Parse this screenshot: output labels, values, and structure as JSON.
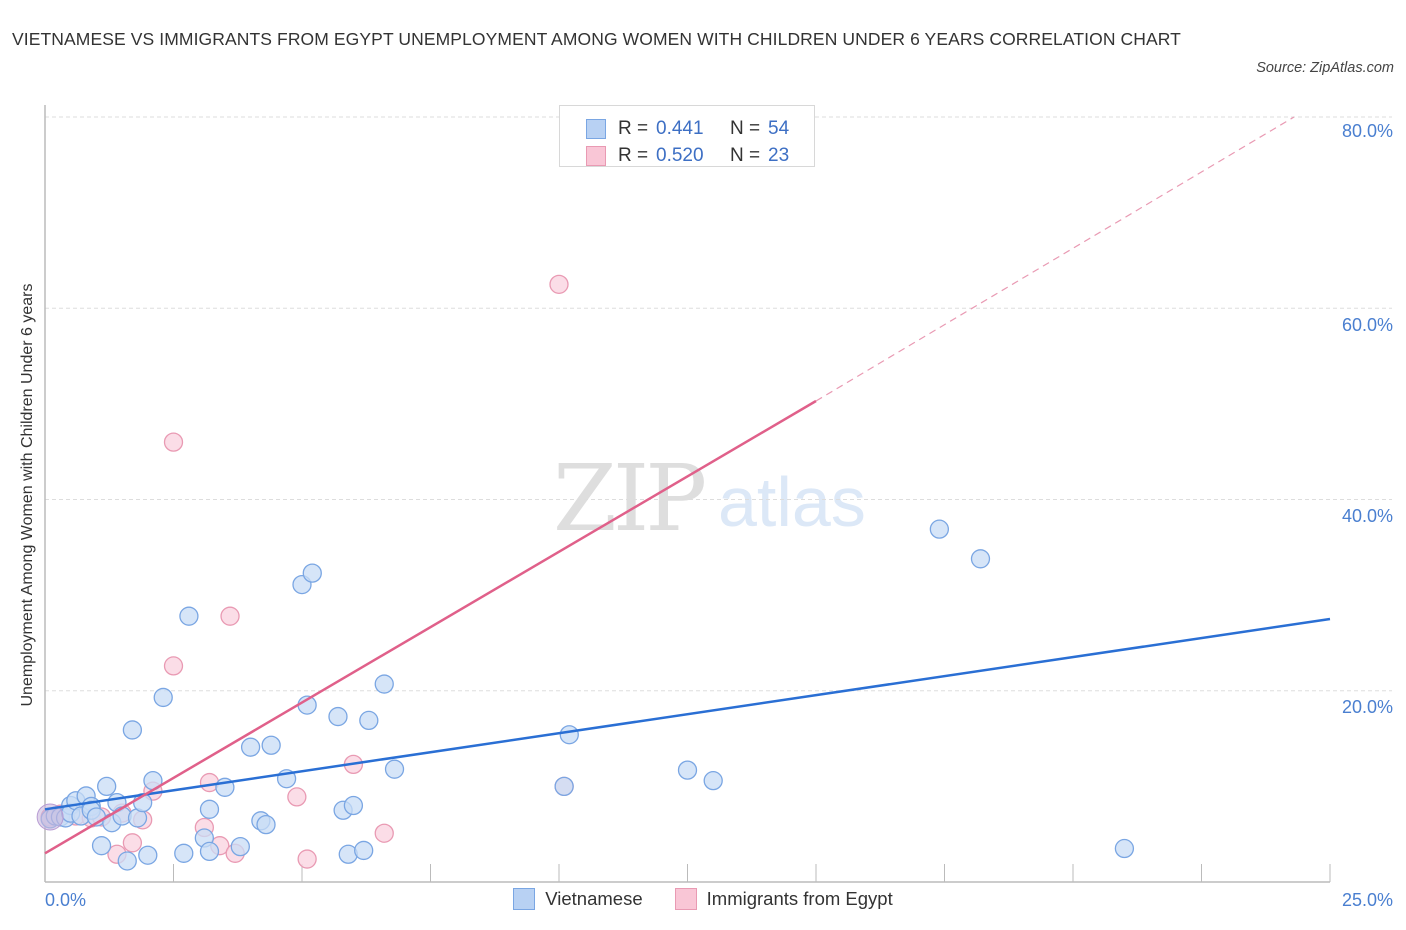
{
  "header": {
    "title": "VIETNAMESE VS IMMIGRANTS FROM EGYPT UNEMPLOYMENT AMONG WOMEN WITH CHILDREN UNDER 6 YEARS CORRELATION CHART",
    "source": "Source: ZipAtlas.com"
  },
  "watermark": {
    "part1": "ZIP",
    "part2": "atlas"
  },
  "stats_box": {
    "rows": [
      {
        "r_label": "R =",
        "r_value": "0.441",
        "n_label": "N =",
        "n_value": "54",
        "color": "#b8d1f3",
        "border": "#7aa6e3"
      },
      {
        "r_label": "R =",
        "r_value": "0.520",
        "n_label": "N =",
        "n_value": "23",
        "color": "#f9c6d6",
        "border": "#e99ab3"
      }
    ]
  },
  "axes": {
    "y_label": "Unemployment Among Women with Children Under 6 years",
    "y_ticks": [
      "80.0%",
      "60.0%",
      "40.0%",
      "20.0%"
    ],
    "x_ticks": [
      "0.0%",
      "25.0%"
    ]
  },
  "legend": {
    "items": [
      {
        "label": "Vietnamese",
        "color": "#b8d1f3",
        "border": "#7aa6e3"
      },
      {
        "label": "Immigrants from Egypt",
        "color": "#f9c6d6",
        "border": "#e99ab3"
      }
    ]
  },
  "chart_data": {
    "type": "scatter",
    "title": "Vietnamese vs Immigrants from Egypt Unemployment Among Women with Children Under 6 Years Correlation Chart",
    "xlabel": "",
    "ylabel": "Unemployment Among Women with Children Under 6 years",
    "xlim": [
      0,
      25
    ],
    "ylim": [
      0,
      80
    ],
    "x_tick_labels": [
      "0.0%",
      "25.0%"
    ],
    "y_tick_labels": [
      "20.0%",
      "40.0%",
      "60.0%",
      "80.0%"
    ],
    "grid": true,
    "legend_position": "bottom",
    "series": [
      {
        "name": "Vietnamese",
        "color": "#7aa6e3",
        "fill": "#c8dcf6",
        "R": 0.441,
        "N": 54,
        "trend": {
          "x": [
            0,
            25
          ],
          "y": [
            7.6,
            27.5
          ]
        },
        "points": [
          [
            0.1,
            6.6
          ],
          [
            0.2,
            6.9
          ],
          [
            0.3,
            6.8
          ],
          [
            0.4,
            6.7
          ],
          [
            0.5,
            8.0
          ],
          [
            0.5,
            7.2
          ],
          [
            0.6,
            8.5
          ],
          [
            0.7,
            6.9
          ],
          [
            0.8,
            9.0
          ],
          [
            0.9,
            7.9
          ],
          [
            0.9,
            7.5
          ],
          [
            1.0,
            6.8
          ],
          [
            1.1,
            3.8
          ],
          [
            1.2,
            10.0
          ],
          [
            1.3,
            6.2
          ],
          [
            1.4,
            8.3
          ],
          [
            1.5,
            6.9
          ],
          [
            1.6,
            2.2
          ],
          [
            1.7,
            15.9
          ],
          [
            1.8,
            6.7
          ],
          [
            1.9,
            8.3
          ],
          [
            2.0,
            2.8
          ],
          [
            2.1,
            10.6
          ],
          [
            2.3,
            19.3
          ],
          [
            2.7,
            3.0
          ],
          [
            2.8,
            27.8
          ],
          [
            3.1,
            4.6
          ],
          [
            3.2,
            7.6
          ],
          [
            3.2,
            3.2
          ],
          [
            3.5,
            9.9
          ],
          [
            3.8,
            3.7
          ],
          [
            4.0,
            14.1
          ],
          [
            4.2,
            6.4
          ],
          [
            4.3,
            6.0
          ],
          [
            4.4,
            14.3
          ],
          [
            4.7,
            10.8
          ],
          [
            5.0,
            31.1
          ],
          [
            5.1,
            18.5
          ],
          [
            5.2,
            32.3
          ],
          [
            5.7,
            17.3
          ],
          [
            5.8,
            7.5
          ],
          [
            5.9,
            2.9
          ],
          [
            6.0,
            8.0
          ],
          [
            6.2,
            3.3
          ],
          [
            6.3,
            16.9
          ],
          [
            6.6,
            20.7
          ],
          [
            6.8,
            11.8
          ],
          [
            10.1,
            10.0
          ],
          [
            10.2,
            15.4
          ],
          [
            12.5,
            11.7
          ],
          [
            13.0,
            10.6
          ],
          [
            17.4,
            36.9
          ],
          [
            18.2,
            33.8
          ],
          [
            21.0,
            3.5
          ]
        ]
      },
      {
        "name": "Immigrants from Egypt",
        "color": "#e99ab3",
        "fill": "#fad2df",
        "R": 0.52,
        "N": 23,
        "trend_solid": {
          "x": [
            0,
            15.0
          ],
          "y": [
            3.0,
            50.3
          ]
        },
        "trend_dashed": {
          "x": [
            15.0,
            24.3
          ],
          "y": [
            50.3,
            80.0
          ]
        },
        "points": [
          [
            0.1,
            6.8
          ],
          [
            0.3,
            7.1
          ],
          [
            0.6,
            6.9
          ],
          [
            0.9,
            6.7
          ],
          [
            1.1,
            6.8
          ],
          [
            1.5,
            7.2
          ],
          [
            1.4,
            2.9
          ],
          [
            1.7,
            4.1
          ],
          [
            1.9,
            6.5
          ],
          [
            2.1,
            9.5
          ],
          [
            2.5,
            46.0
          ],
          [
            2.5,
            22.6
          ],
          [
            3.1,
            5.7
          ],
          [
            3.2,
            10.4
          ],
          [
            3.4,
            3.8
          ],
          [
            3.6,
            27.8
          ],
          [
            3.7,
            3.0
          ],
          [
            4.9,
            8.9
          ],
          [
            5.1,
            2.4
          ],
          [
            6.0,
            12.3
          ],
          [
            6.6,
            5.1
          ],
          [
            10.0,
            62.5
          ],
          [
            10.1,
            10.0
          ]
        ]
      }
    ]
  }
}
